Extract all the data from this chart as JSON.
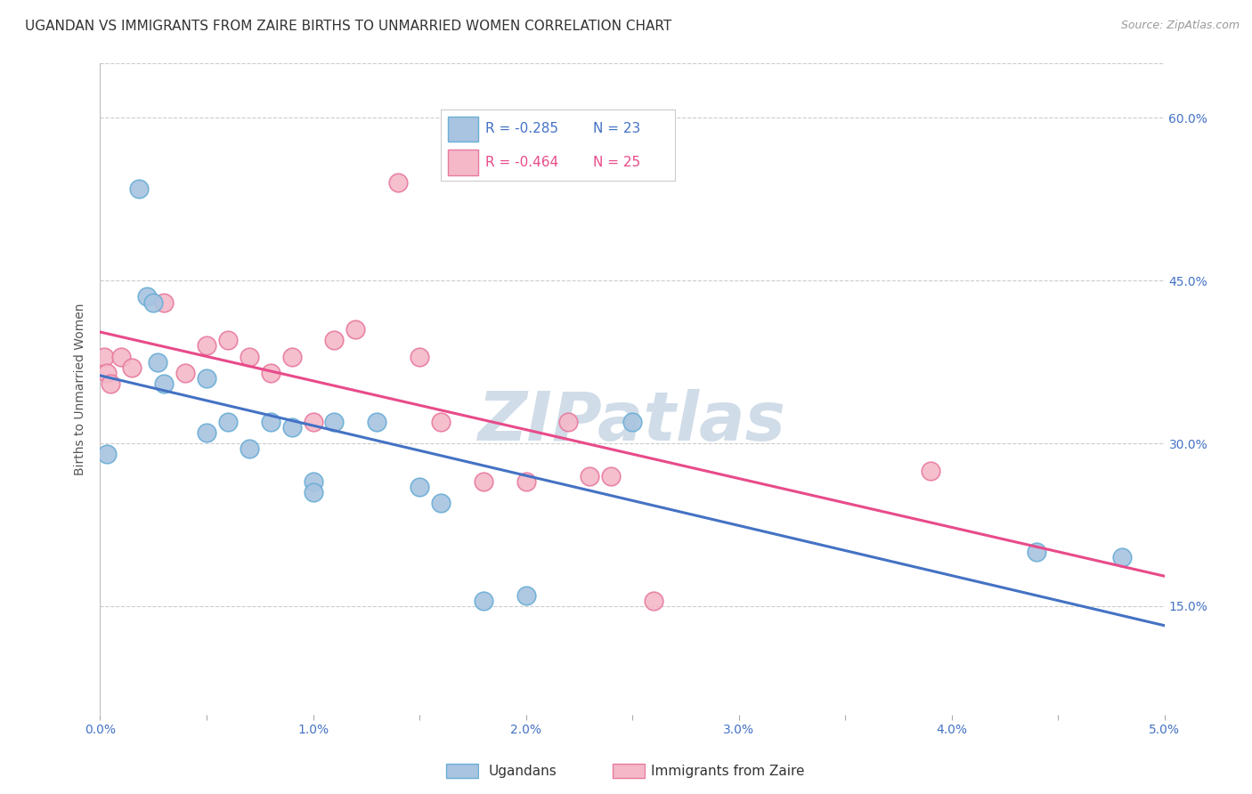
{
  "title": "UGANDAN VS IMMIGRANTS FROM ZAIRE BIRTHS TO UNMARRIED WOMEN CORRELATION CHART",
  "source": "Source: ZipAtlas.com",
  "ylabel": "Births to Unmarried Women",
  "xlim": [
    0.0,
    0.05
  ],
  "ylim": [
    0.05,
    0.65
  ],
  "xticks": [
    0.0,
    0.005,
    0.01,
    0.015,
    0.02,
    0.025,
    0.03,
    0.035,
    0.04,
    0.045,
    0.05
  ],
  "xtick_labels_show": [
    0.0,
    0.01,
    0.02,
    0.03,
    0.04,
    0.05
  ],
  "xtick_labels": [
    "0.0%",
    "",
    "1.0%",
    "",
    "2.0%",
    "",
    "3.0%",
    "",
    "4.0%",
    "",
    "5.0%"
  ],
  "yticks": [
    0.15,
    0.3,
    0.45,
    0.6
  ],
  "ytick_labels": [
    "15.0%",
    "30.0%",
    "45.0%",
    "60.0%"
  ],
  "ugandan_x": [
    0.0003,
    0.0018,
    0.0022,
    0.0025,
    0.0027,
    0.003,
    0.005,
    0.005,
    0.006,
    0.007,
    0.008,
    0.009,
    0.01,
    0.01,
    0.011,
    0.013,
    0.015,
    0.016,
    0.018,
    0.02,
    0.025,
    0.044,
    0.048
  ],
  "ugandan_y": [
    0.29,
    0.535,
    0.435,
    0.43,
    0.375,
    0.355,
    0.36,
    0.31,
    0.32,
    0.295,
    0.32,
    0.315,
    0.265,
    0.255,
    0.32,
    0.32,
    0.26,
    0.245,
    0.155,
    0.16,
    0.32,
    0.2,
    0.195
  ],
  "zaire_x": [
    0.0002,
    0.0003,
    0.0005,
    0.001,
    0.0015,
    0.003,
    0.004,
    0.005,
    0.006,
    0.007,
    0.008,
    0.009,
    0.01,
    0.011,
    0.012,
    0.014,
    0.015,
    0.016,
    0.018,
    0.02,
    0.022,
    0.023,
    0.024,
    0.026,
    0.039
  ],
  "zaire_y": [
    0.38,
    0.365,
    0.355,
    0.38,
    0.37,
    0.43,
    0.365,
    0.39,
    0.395,
    0.38,
    0.365,
    0.38,
    0.32,
    0.395,
    0.405,
    0.54,
    0.38,
    0.32,
    0.265,
    0.265,
    0.32,
    0.27,
    0.27,
    0.155,
    0.275
  ],
  "ugandan_color": "#a8c4e0",
  "ugandan_edge": "#6aaed6",
  "zaire_color": "#f4b8c8",
  "zaire_edge": "#e87a9f",
  "ugandan_line_color": "#4472c4",
  "zaire_line_color": "#e84b8a",
  "watermark": "ZIPatlas",
  "watermark_color": "#d0dce8",
  "background_color": "#ffffff",
  "title_fontsize": 11,
  "label_fontsize": 10,
  "tick_fontsize": 10,
  "source_fontsize": 9
}
